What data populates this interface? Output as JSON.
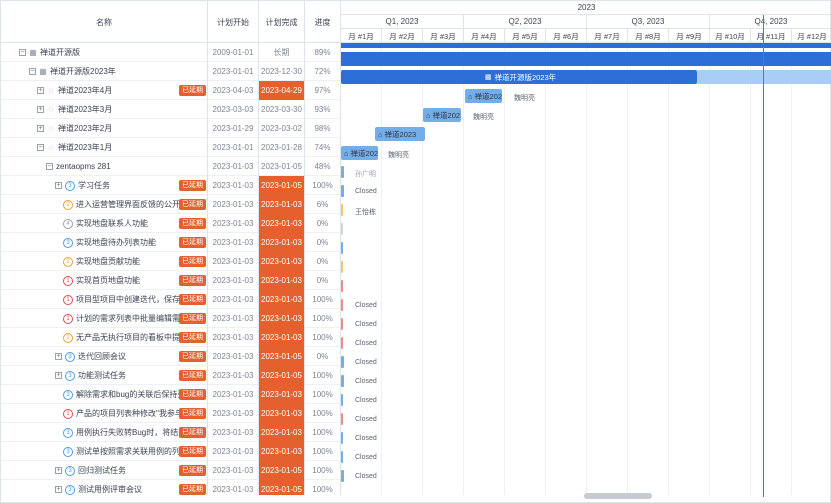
{
  "headers": {
    "name": "名称",
    "start": "计划开始",
    "end": "计划完成",
    "progress": "进度"
  },
  "timeline": {
    "year": "2023",
    "quarters": [
      "Q1, 2023",
      "Q2, 2023",
      "Q3, 2023",
      "Q4, 2023"
    ],
    "months": [
      "月 #1月",
      "月 #2月",
      "月 #3月",
      "月 #4月",
      "月 #5月",
      "月 #6月",
      "月 #7月",
      "月 #8月",
      "月 #9月",
      "月 #10月",
      "月 #11月",
      "月 #12月"
    ]
  },
  "badge_label": "已延期",
  "rows": [
    {
      "name": "禅道开源版",
      "start": "2009-01-01",
      "end": "长期",
      "progress": "89%"
    },
    {
      "name": "禅道开源版2023年",
      "start": "2023-01-01",
      "end": "2023-12-30",
      "progress": "72%"
    },
    {
      "name": "禅道2023年4月",
      "start": "2023-04-03",
      "end": "2023-04-29",
      "progress": "97%"
    },
    {
      "name": "禅道2023年3月",
      "start": "2023-03-03",
      "end": "2023-03-30",
      "progress": "93%"
    },
    {
      "name": "禅道2023年2月",
      "start": "2023-01-29",
      "end": "2023-03-02",
      "progress": "98%"
    },
    {
      "name": "禅道2023年1月",
      "start": "2023-01-01",
      "end": "2023-01-28",
      "progress": "74%"
    },
    {
      "name": "zentaopms 281",
      "start": "2023-01-03",
      "end": "2023-01-05",
      "progress": "48%"
    },
    {
      "name": "学习任务",
      "start": "2023-01-03",
      "end": "2023-01-05",
      "progress": "100%"
    },
    {
      "name": "进入运营管理界面反馈的公开任务",
      "start": "2023-01-03",
      "end": "2023-01-03",
      "progress": "6%"
    },
    {
      "name": "实现地盘联系人功能",
      "start": "2023-01-03",
      "end": "2023-01-03",
      "progress": "0%"
    },
    {
      "name": "实现地盘待办列表功能",
      "start": "2023-01-03",
      "end": "2023-01-03",
      "progress": "0%"
    },
    {
      "name": "实现地盘贡献功能",
      "start": "2023-01-03",
      "end": "2023-01-03",
      "progress": "0%"
    },
    {
      "name": "实现首页地盘功能",
      "start": "2023-01-03",
      "end": "2023-01-03",
      "progress": "0%"
    },
    {
      "name": "项目型项目中创建迭代，保存后提示",
      "start": "2023-01-03",
      "end": "2023-01-03",
      "progress": "100%"
    },
    {
      "name": "计划的需求列表中批量编辑需求，计",
      "start": "2023-01-03",
      "end": "2023-01-03",
      "progress": "100%"
    },
    {
      "name": "无产品无执行项目的看板中提示",
      "start": "2023-01-03",
      "end": "2023-01-03",
      "progress": "100%"
    },
    {
      "name": "迭代回顾会议",
      "start": "2023-01-03",
      "end": "2023-01-05",
      "progress": "0%"
    },
    {
      "name": "功能测试任务",
      "start": "2023-01-03",
      "end": "2023-01-05",
      "progress": "100%"
    },
    {
      "name": "解除需求和bug的关联后保持列表",
      "start": "2023-01-03",
      "end": "2023-01-03",
      "progress": "100%"
    },
    {
      "name": "产品的项目列表种修改\"我参与\"",
      "start": "2023-01-03",
      "end": "2023-01-03",
      "progress": "100%"
    },
    {
      "name": "用例执行失败转Bug时，将结果保存",
      "start": "2023-01-03",
      "end": "2023-01-03",
      "progress": "100%"
    },
    {
      "name": "测试单按照需求关联用例的列表",
      "start": "2023-01-03",
      "end": "2023-01-03",
      "progress": "100%"
    },
    {
      "name": "回归测试任务",
      "start": "2023-01-03",
      "end": "2023-01-05",
      "progress": "100%"
    },
    {
      "name": "测试用例评审会议",
      "start": "2023-01-03",
      "end": "2023-01-05",
      "progress": "100%"
    }
  ],
  "gantt_labels": {
    "bar_2023": "禅道开源版2023年",
    "bar_apr": "禅道202",
    "bar_mar": "禅道202",
    "bar_feb": "禅道2023",
    "bar_jan": "禅道202",
    "owner_apr": "魏明亮",
    "owner_mar": "魏明亮",
    "owner_jan": "魏明亮",
    "owner_281": "孙广明",
    "owner_closed": "Closed",
    "owner_wang": "王怡栋"
  },
  "colors": {
    "bar_dark": "#2d6fd6",
    "bar_light": "#a9cdf5",
    "milestone": "#74aee8",
    "late": "#e5602e",
    "today": "#e2464b"
  }
}
